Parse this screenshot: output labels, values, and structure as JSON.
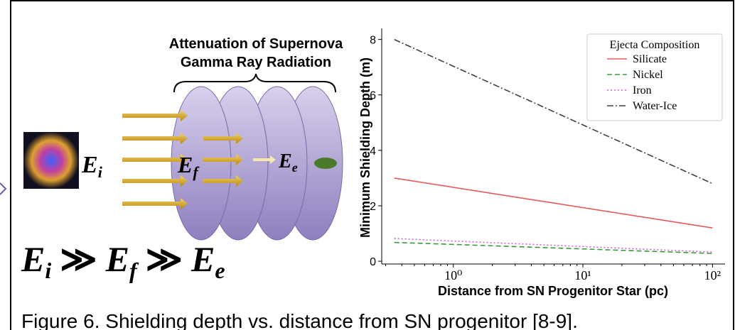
{
  "diagram": {
    "title_lines": [
      "Attenuation of Supernova",
      "Gamma Ray Radiation"
    ],
    "labels": [
      {
        "base": "E",
        "sub": "i"
      },
      {
        "base": "E",
        "sub": "f"
      },
      {
        "base": "E",
        "sub": "e"
      }
    ],
    "formula": [
      {
        "base": "E",
        "sub": "i"
      },
      "≫",
      {
        "base": "E",
        "sub": "f"
      },
      "≫",
      {
        "base": "E",
        "sub": "e"
      }
    ]
  },
  "chart_data": {
    "type": "line",
    "x_label": "Distance from SN Progenitor Star (pc)",
    "y_label": "Minimum Shielding Depth (m)",
    "x": [
      0.35,
      100
    ],
    "series": [
      {
        "name": "Silicate",
        "color": "#e8595e",
        "linestyle": "solid",
        "values": [
          3.0,
          1.2
        ]
      },
      {
        "name": "Nickel",
        "color": "#3a9a3a",
        "linestyle": "dashed",
        "values": [
          0.68,
          0.28
        ]
      },
      {
        "name": "Iron",
        "color": "#d15fd1",
        "linestyle": "dotted",
        "values": [
          0.82,
          0.33
        ]
      },
      {
        "name": "Water-Ice",
        "color": "#404040",
        "linestyle": "dashdot",
        "values": [
          8.0,
          2.8
        ]
      }
    ],
    "xscale": "log",
    "xlim": [
      0.28,
      125
    ],
    "xticks": [
      {
        "value": 1,
        "label": "10⁰"
      },
      {
        "value": 10,
        "label": "10¹"
      },
      {
        "value": 100,
        "label": "10²"
      }
    ],
    "ylim": [
      -0.1,
      8.4
    ],
    "yticks": [
      0,
      2,
      4,
      6,
      8
    ],
    "grid": false,
    "legend_title": "Ejecta Composition",
    "legend_position": "upper right"
  },
  "caption": "Figure 6. Shielding depth vs. distance from SN progenitor [8-9]."
}
